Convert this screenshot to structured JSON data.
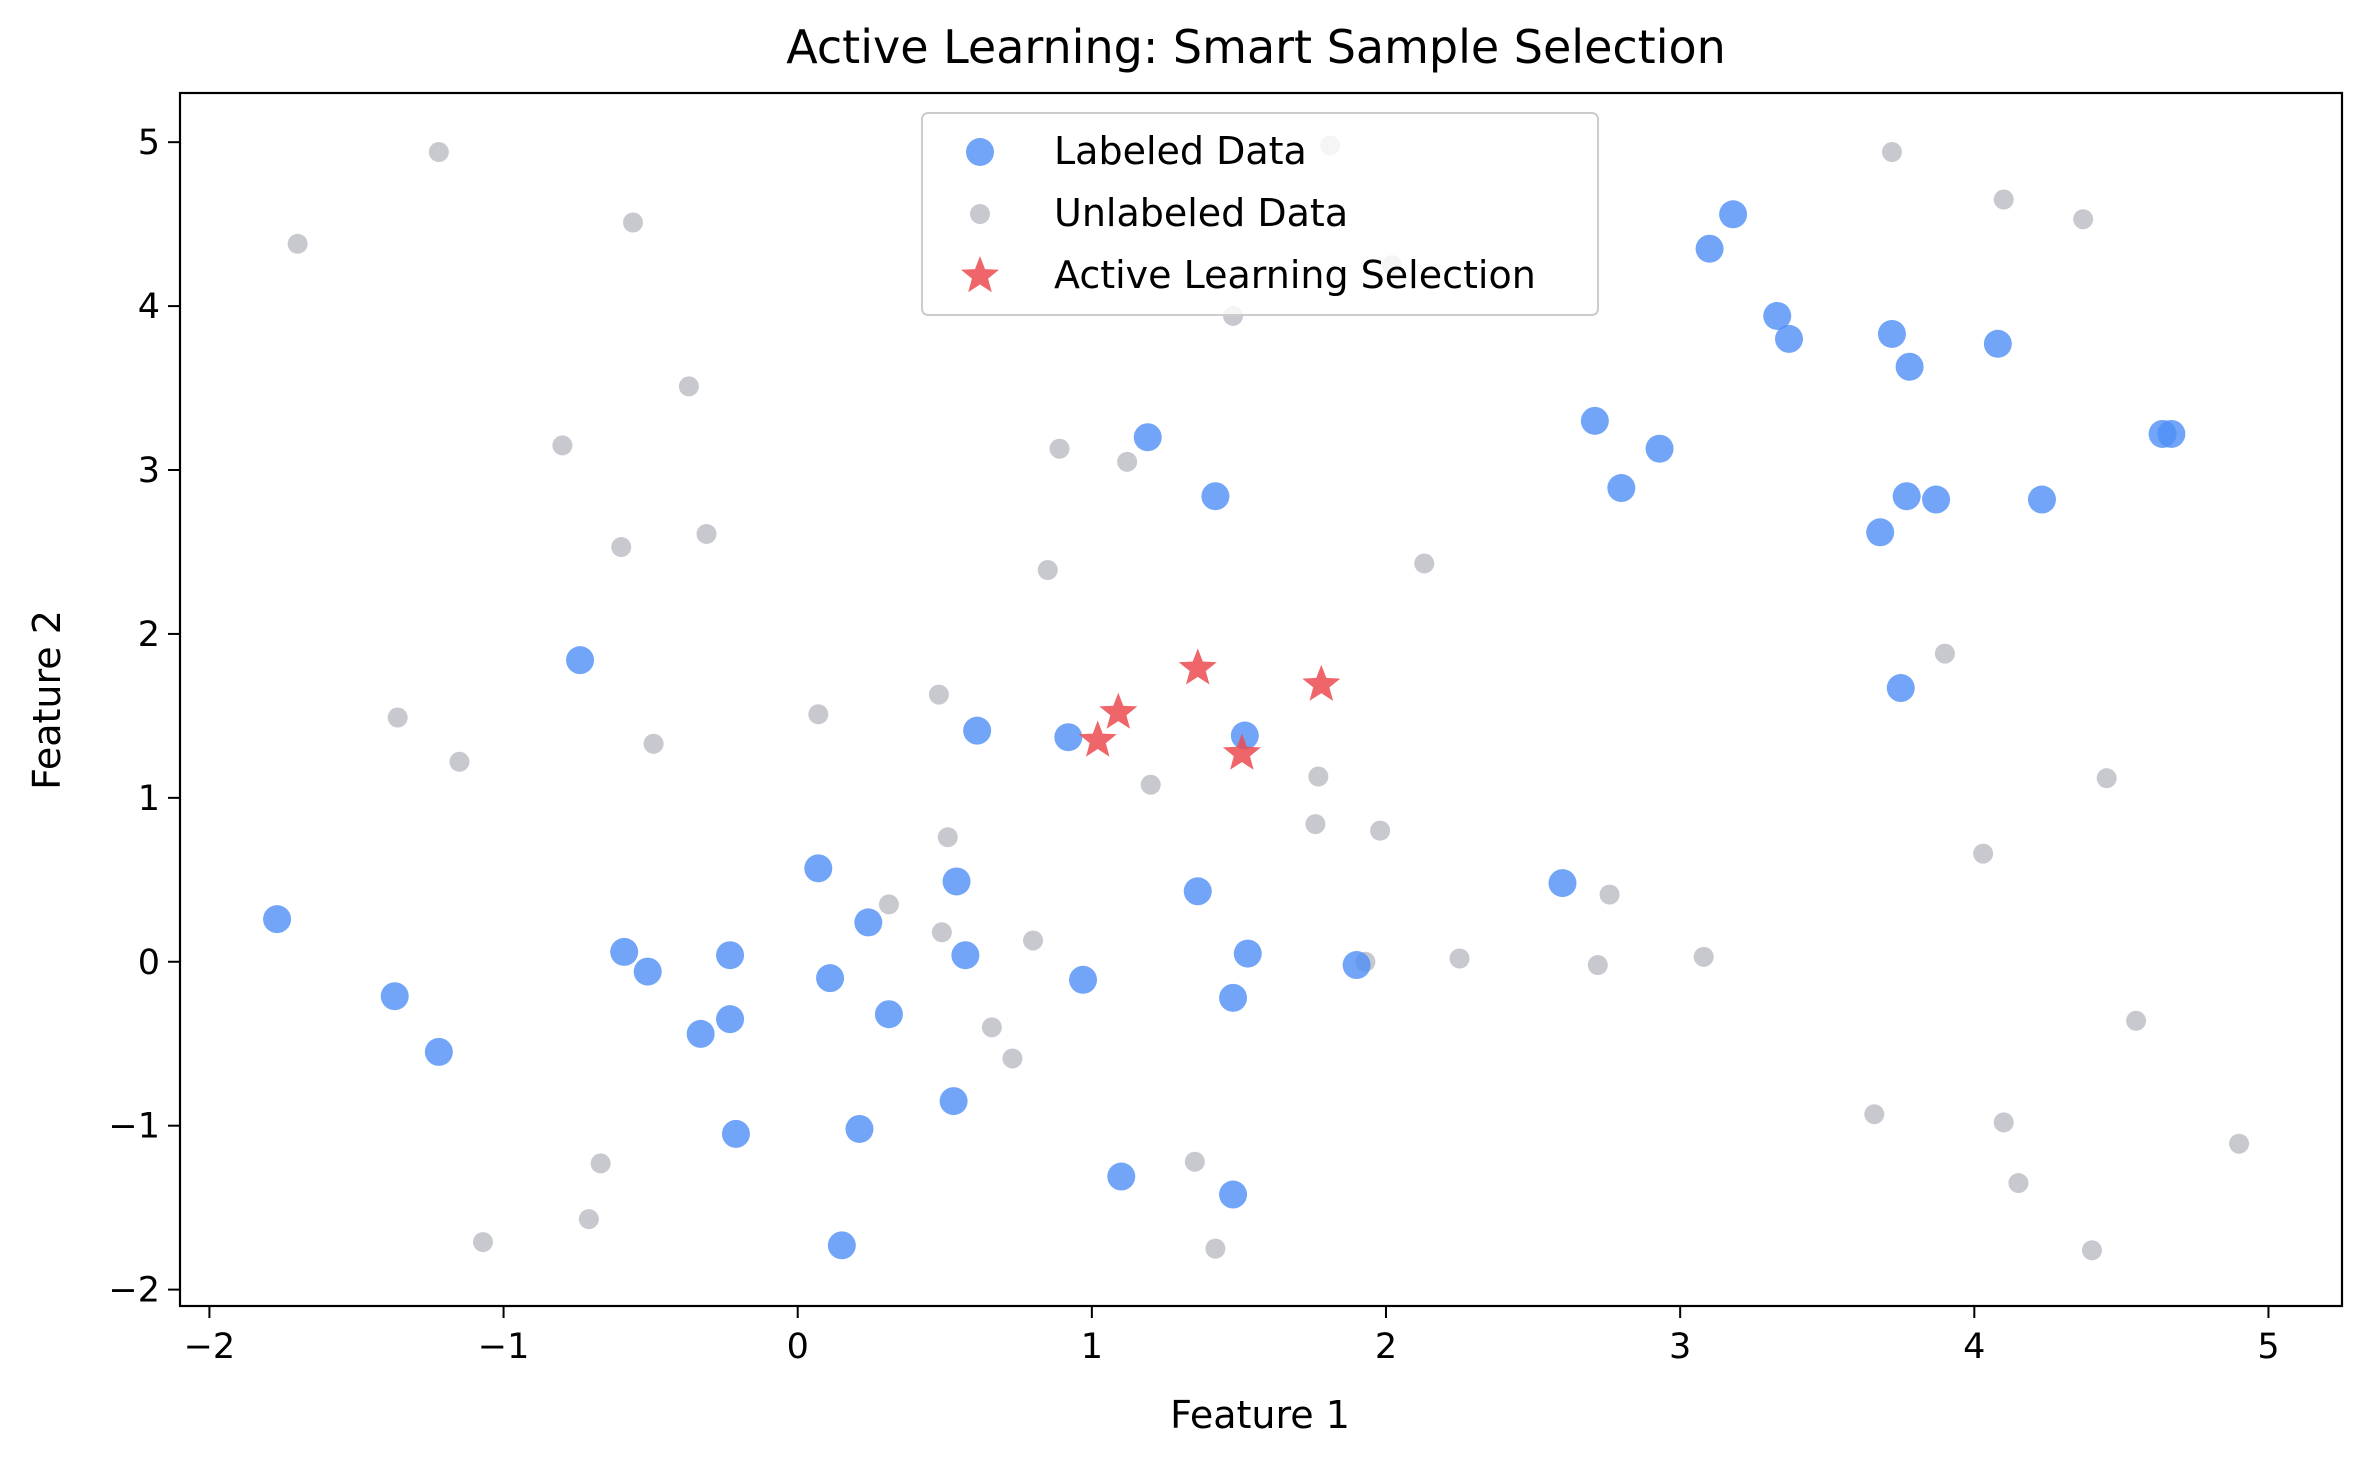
{
  "chart_data": {
    "type": "scatter",
    "title": "Active Learning: Smart Sample Selection",
    "xlabel": "Feature 1",
    "ylabel": "Feature 2",
    "xlim": [
      -2.1,
      5.25
    ],
    "ylim": [
      -2.1,
      5.3
    ],
    "xticks": [
      -2,
      -1,
      0,
      1,
      2,
      3,
      4,
      5
    ],
    "yticks": [
      -2,
      -1,
      0,
      1,
      2,
      3,
      4,
      5
    ],
    "xtick_labels": [
      "−2",
      "−1",
      "0",
      "1",
      "2",
      "3",
      "4",
      "5"
    ],
    "ytick_labels": [
      "−2",
      "−1",
      "0",
      "1",
      "2",
      "3",
      "4",
      "5"
    ],
    "grid": false,
    "legend": "top-center",
    "colors": {
      "labeled": "#4f8ef5",
      "unlabeled": "#b9bbc2",
      "selection": "#ec4b50"
    },
    "series": [
      {
        "name": "Unlabeled Data",
        "marker": "circle-small",
        "points": [
          [
            -1.22,
            4.94
          ],
          [
            -1.7,
            4.38
          ],
          [
            -0.56,
            4.51
          ],
          [
            -0.37,
            3.51
          ],
          [
            -0.8,
            3.15
          ],
          [
            -0.6,
            2.53
          ],
          [
            -0.31,
            2.61
          ],
          [
            -1.36,
            1.49
          ],
          [
            -1.15,
            1.22
          ],
          [
            -0.49,
            1.33
          ],
          [
            0.07,
            1.51
          ],
          [
            0.48,
            1.63
          ],
          [
            0.51,
            0.76
          ],
          [
            0.31,
            0.35
          ],
          [
            0.49,
            0.18
          ],
          [
            0.8,
            0.13
          ],
          [
            0.66,
            -0.4
          ],
          [
            0.73,
            -0.59
          ],
          [
            -0.67,
            -1.23
          ],
          [
            -0.71,
            -1.57
          ],
          [
            -1.07,
            -1.71
          ],
          [
            1.81,
            4.98
          ],
          [
            2.02,
            4.25
          ],
          [
            1.48,
            3.94
          ],
          [
            0.89,
            3.13
          ],
          [
            1.12,
            3.05
          ],
          [
            0.85,
            2.39
          ],
          [
            2.13,
            2.43
          ],
          [
            1.2,
            1.08
          ],
          [
            1.77,
            1.13
          ],
          [
            1.76,
            0.84
          ],
          [
            1.98,
            0.8
          ],
          [
            2.76,
            0.41
          ],
          [
            2.25,
            0.02
          ],
          [
            1.93,
            0.0
          ],
          [
            2.72,
            -0.02
          ],
          [
            3.08,
            0.03
          ],
          [
            1.35,
            -1.22
          ],
          [
            1.42,
            -1.75
          ],
          [
            3.72,
            4.94
          ],
          [
            4.1,
            4.65
          ],
          [
            4.37,
            4.53
          ],
          [
            3.9,
            1.88
          ],
          [
            4.45,
            1.12
          ],
          [
            4.03,
            0.66
          ],
          [
            4.55,
            -0.36
          ],
          [
            3.66,
            -0.93
          ],
          [
            4.1,
            -0.98
          ],
          [
            4.15,
            -1.35
          ],
          [
            4.4,
            -1.76
          ],
          [
            4.9,
            -1.11
          ]
        ]
      },
      {
        "name": "Labeled Data",
        "marker": "circle",
        "points": [
          [
            -1.77,
            0.26
          ],
          [
            -1.37,
            -0.21
          ],
          [
            -1.22,
            -0.55
          ],
          [
            -0.74,
            1.84
          ],
          [
            -0.59,
            0.06
          ],
          [
            -0.51,
            -0.06
          ],
          [
            -0.33,
            -0.44
          ],
          [
            -0.23,
            0.04
          ],
          [
            -0.23,
            -0.35
          ],
          [
            -0.21,
            -1.05
          ],
          [
            0.07,
            0.57
          ],
          [
            0.11,
            -0.1
          ],
          [
            0.15,
            -1.73
          ],
          [
            0.21,
            -1.02
          ],
          [
            0.24,
            0.24
          ],
          [
            0.31,
            -0.32
          ],
          [
            0.53,
            -0.85
          ],
          [
            0.54,
            0.49
          ],
          [
            0.57,
            0.04
          ],
          [
            0.61,
            1.41
          ],
          [
            0.92,
            1.37
          ],
          [
            0.97,
            -0.11
          ],
          [
            1.1,
            -1.31
          ],
          [
            1.19,
            3.2
          ],
          [
            1.36,
            0.43
          ],
          [
            1.42,
            2.84
          ],
          [
            1.48,
            -0.22
          ],
          [
            1.48,
            -1.42
          ],
          [
            1.52,
            1.38
          ],
          [
            1.53,
            0.05
          ],
          [
            1.9,
            -0.02
          ],
          [
            2.6,
            0.48
          ],
          [
            2.71,
            3.3
          ],
          [
            2.8,
            2.89
          ],
          [
            2.93,
            3.13
          ],
          [
            3.1,
            4.35
          ],
          [
            3.18,
            4.56
          ],
          [
            3.33,
            3.94
          ],
          [
            3.37,
            3.8
          ],
          [
            3.68,
            2.62
          ],
          [
            3.72,
            3.83
          ],
          [
            3.75,
            1.67
          ],
          [
            3.77,
            2.84
          ],
          [
            3.78,
            3.63
          ],
          [
            3.87,
            2.82
          ],
          [
            4.08,
            3.77
          ],
          [
            4.23,
            2.82
          ],
          [
            4.64,
            3.22
          ],
          [
            4.67,
            3.22
          ]
        ]
      },
      {
        "name": "Active Learning Selection",
        "marker": "star",
        "points": [
          [
            1.02,
            1.35
          ],
          [
            1.09,
            1.52
          ],
          [
            1.36,
            1.79
          ],
          [
            1.51,
            1.27
          ],
          [
            1.78,
            1.69
          ]
        ]
      }
    ]
  }
}
